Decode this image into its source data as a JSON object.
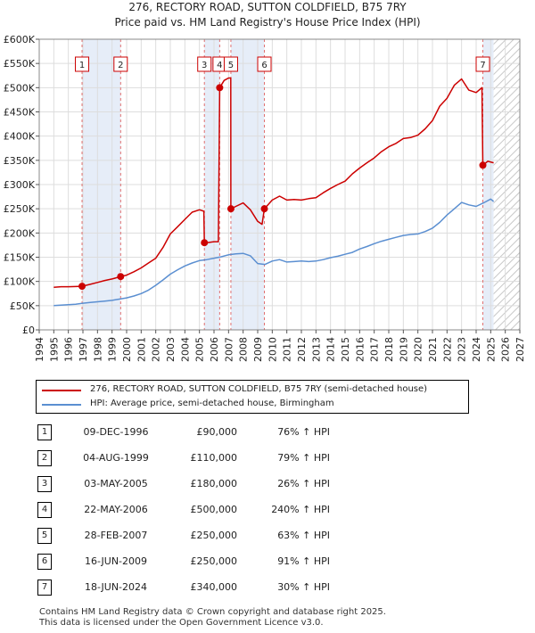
{
  "chart_data": {
    "type": "line",
    "title": "276, RECTORY ROAD, SUTTON COLDFIELD, B75 7RY",
    "subtitle": "Price paid vs. HM Land Registry's House Price Index (HPI)",
    "xlim": [
      1994,
      2027
    ],
    "ylim": [
      0,
      600000
    ],
    "x_ticks": [
      "1994",
      "1995",
      "1996",
      "1997",
      "1998",
      "1999",
      "2000",
      "2001",
      "2002",
      "2003",
      "2004",
      "2005",
      "2006",
      "2007",
      "2008",
      "2009",
      "2010",
      "2011",
      "2012",
      "2013",
      "2014",
      "2015",
      "2016",
      "2017",
      "2018",
      "2019",
      "2020",
      "2021",
      "2022",
      "2023",
      "2024",
      "2025",
      "2026",
      "2027"
    ],
    "y_ticks": [
      {
        "value": 0,
        "label": "£0"
      },
      {
        "value": 50000,
        "label": "£50K"
      },
      {
        "value": 100000,
        "label": "£100K"
      },
      {
        "value": 150000,
        "label": "£150K"
      },
      {
        "value": 200000,
        "label": "£200K"
      },
      {
        "value": 250000,
        "label": "£250K"
      },
      {
        "value": 300000,
        "label": "£300K"
      },
      {
        "value": 350000,
        "label": "£350K"
      },
      {
        "value": 400000,
        "label": "£400K"
      },
      {
        "value": 450000,
        "label": "£450K"
      },
      {
        "value": 500000,
        "label": "£500K"
      },
      {
        "value": 550000,
        "label": "£550K"
      },
      {
        "value": 600000,
        "label": "£600K"
      }
    ],
    "grid": true,
    "shaded_ranges": [
      {
        "from": 1996.94,
        "to": 1999.59
      },
      {
        "from": 2005.34,
        "to": 2006.39
      },
      {
        "from": 2007.16,
        "to": 2009.46
      },
      {
        "from": 2024.46,
        "to": 2025.2
      }
    ],
    "hatched_range": {
      "from": 2025.2,
      "to": 2027
    },
    "series": [
      {
        "name": "276, RECTORY ROAD, SUTTON COLDFIELD, B75 7RY (semi-detached house)",
        "color": "#cc0000",
        "x": [
          1995.0,
          1995.5,
          1996.0,
          1996.5,
          1996.94,
          1997.5,
          1998.0,
          1998.5,
          1999.0,
          1999.59,
          2000.0,
          2000.5,
          2001.0,
          2001.5,
          2002.0,
          2002.5,
          2003.0,
          2003.5,
          2004.0,
          2004.5,
          2005.0,
          2005.3,
          2005.34,
          2005.5,
          2006.0,
          2006.3,
          2006.39,
          2006.7,
          2007.0,
          2007.15,
          2007.16,
          2007.5,
          2008.0,
          2008.5,
          2009.0,
          2009.3,
          2009.46,
          2010.0,
          2010.5,
          2011.0,
          2011.5,
          2012.0,
          2012.5,
          2013.0,
          2013.5,
          2014.0,
          2014.5,
          2015.0,
          2015.5,
          2016.0,
          2016.5,
          2017.0,
          2017.5,
          2018.0,
          2018.5,
          2019.0,
          2019.5,
          2020.0,
          2020.5,
          2021.0,
          2021.5,
          2022.0,
          2022.5,
          2023.0,
          2023.5,
          2024.0,
          2024.4,
          2024.46,
          2024.8,
          2025.2
        ],
        "y": [
          88000,
          89000,
          89000,
          89500,
          90000,
          94000,
          98000,
          102000,
          105000,
          110000,
          113000,
          120000,
          128000,
          138000,
          148000,
          170000,
          198000,
          213000,
          228000,
          243000,
          248000,
          245000,
          180000,
          180000,
          182000,
          182000,
          500000,
          515000,
          520000,
          520000,
          250000,
          255000,
          262000,
          248000,
          224000,
          218000,
          250000,
          268000,
          276000,
          268000,
          269000,
          268000,
          271000,
          273000,
          283000,
          292000,
          300000,
          307000,
          322000,
          334000,
          345000,
          355000,
          368000,
          378000,
          385000,
          395000,
          397000,
          402000,
          415000,
          432000,
          462000,
          478000,
          505000,
          518000,
          495000,
          490000,
          500000,
          340000,
          348000,
          345000
        ]
      },
      {
        "name": "HPI: Average price, semi-detached house, Birmingham",
        "color": "#5b8fd1",
        "x": [
          1995.0,
          1995.5,
          1996.0,
          1996.5,
          1997.0,
          1997.5,
          1998.0,
          1998.5,
          1999.0,
          1999.5,
          2000.0,
          2000.5,
          2001.0,
          2001.5,
          2002.0,
          2002.5,
          2003.0,
          2003.5,
          2004.0,
          2004.5,
          2005.0,
          2005.5,
          2006.0,
          2006.5,
          2007.0,
          2007.5,
          2008.0,
          2008.5,
          2009.0,
          2009.5,
          2010.0,
          2010.5,
          2011.0,
          2011.5,
          2012.0,
          2012.5,
          2013.0,
          2013.5,
          2014.0,
          2014.5,
          2015.0,
          2015.5,
          2016.0,
          2016.5,
          2017.0,
          2017.5,
          2018.0,
          2018.5,
          2019.0,
          2019.5,
          2020.0,
          2020.5,
          2021.0,
          2021.5,
          2022.0,
          2022.5,
          2023.0,
          2023.5,
          2024.0,
          2024.5,
          2025.0,
          2025.2
        ],
        "y": [
          50000,
          51000,
          52000,
          53000,
          55000,
          56500,
          58000,
          59500,
          61000,
          63500,
          66000,
          70000,
          75000,
          82000,
          92000,
          103000,
          115000,
          124000,
          132000,
          138000,
          143000,
          145000,
          148000,
          151000,
          155000,
          157000,
          158000,
          153000,
          137000,
          135000,
          142000,
          145000,
          140000,
          141000,
          142000,
          141000,
          142000,
          145000,
          149000,
          152000,
          156000,
          160000,
          167000,
          172000,
          178000,
          183000,
          187000,
          191000,
          195000,
          197000,
          198000,
          203000,
          210000,
          222000,
          237000,
          250000,
          263000,
          258000,
          255000,
          262000,
          270000,
          265000
        ]
      }
    ],
    "sales": [
      {
        "n": "1",
        "x": 1996.94,
        "y": 90000
      },
      {
        "n": "2",
        "x": 1999.59,
        "y": 110000
      },
      {
        "n": "3",
        "x": 2005.34,
        "y": 180000
      },
      {
        "n": "4",
        "x": 2006.39,
        "y": 500000
      },
      {
        "n": "5",
        "x": 2007.16,
        "y": 250000
      },
      {
        "n": "6",
        "x": 2009.46,
        "y": 250000
      },
      {
        "n": "7",
        "x": 2024.46,
        "y": 340000
      }
    ]
  },
  "legend": {
    "property": "276, RECTORY ROAD, SUTTON COLDFIELD, B75 7RY (semi-detached house)",
    "hpi": "HPI: Average price, semi-detached house, Birmingham"
  },
  "transactions": [
    {
      "n": "1",
      "date": "09-DEC-1996",
      "price": "£90,000",
      "hpi": "76% ↑ HPI"
    },
    {
      "n": "2",
      "date": "04-AUG-1999",
      "price": "£110,000",
      "hpi": "79% ↑ HPI"
    },
    {
      "n": "3",
      "date": "03-MAY-2005",
      "price": "£180,000",
      "hpi": "26% ↑ HPI"
    },
    {
      "n": "4",
      "date": "22-MAY-2006",
      "price": "£500,000",
      "hpi": "240% ↑ HPI"
    },
    {
      "n": "5",
      "date": "28-FEB-2007",
      "price": "£250,000",
      "hpi": "63% ↑ HPI"
    },
    {
      "n": "6",
      "date": "16-JUN-2009",
      "price": "£250,000",
      "hpi": "91% ↑ HPI"
    },
    {
      "n": "7",
      "date": "18-JUN-2024",
      "price": "£340,000",
      "hpi": "30% ↑ HPI"
    }
  ],
  "footer": {
    "line1": "Contains HM Land Registry data © Crown copyright and database right 2025.",
    "line2": "This data is licensed under the Open Government Licence v3.0."
  }
}
